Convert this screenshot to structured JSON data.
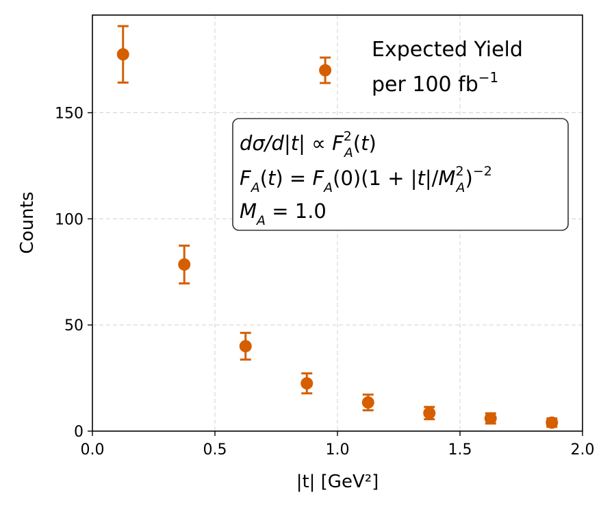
{
  "chart_data": {
    "type": "scatter",
    "xlabel": "|t| [GeV²]",
    "ylabel": "Counts",
    "xlim": [
      0.0,
      2.0
    ],
    "ylim": [
      0,
      196
    ],
    "x_ticks": [
      0.0,
      0.5,
      1.0,
      1.5,
      2.0
    ],
    "x_tick_labels": [
      "0.0",
      "0.5",
      "1.0",
      "1.5",
      "2.0"
    ],
    "y_ticks": [
      0,
      50,
      100,
      150
    ],
    "y_tick_labels": [
      "0",
      "50",
      "100",
      "150"
    ],
    "grid": true,
    "series": [
      {
        "color": "#d55e00",
        "marker": "circle",
        "points": [
          {
            "x": 0.125,
            "y": 177.5,
            "err": 13.3
          },
          {
            "x": 0.375,
            "y": 78.5,
            "err": 8.9
          },
          {
            "x": 0.625,
            "y": 40.0,
            "err": 6.3
          },
          {
            "x": 0.875,
            "y": 22.5,
            "err": 4.7
          },
          {
            "x": 0.95,
            "y": 170.0,
            "err": 6.0
          },
          {
            "x": 1.125,
            "y": 13.5,
            "err": 3.7
          },
          {
            "x": 1.375,
            "y": 8.5,
            "err": 2.9
          },
          {
            "x": 1.625,
            "y": 6.0,
            "err": 2.4
          },
          {
            "x": 1.875,
            "y": 4.0,
            "err": 2.0
          }
        ]
      }
    ],
    "annotation": {
      "line1": "Expected Yield",
      "line2_prefix": "per 100 fb",
      "line2_sup": "−1"
    },
    "formula_box": {
      "line1": "dσ/d|t| ∝ F_A^2(t)",
      "line2": "F_A(t) = F_A(0)(1 + |t|/M_A^2)^-2",
      "line3": "M_A = 1.0"
    }
  }
}
